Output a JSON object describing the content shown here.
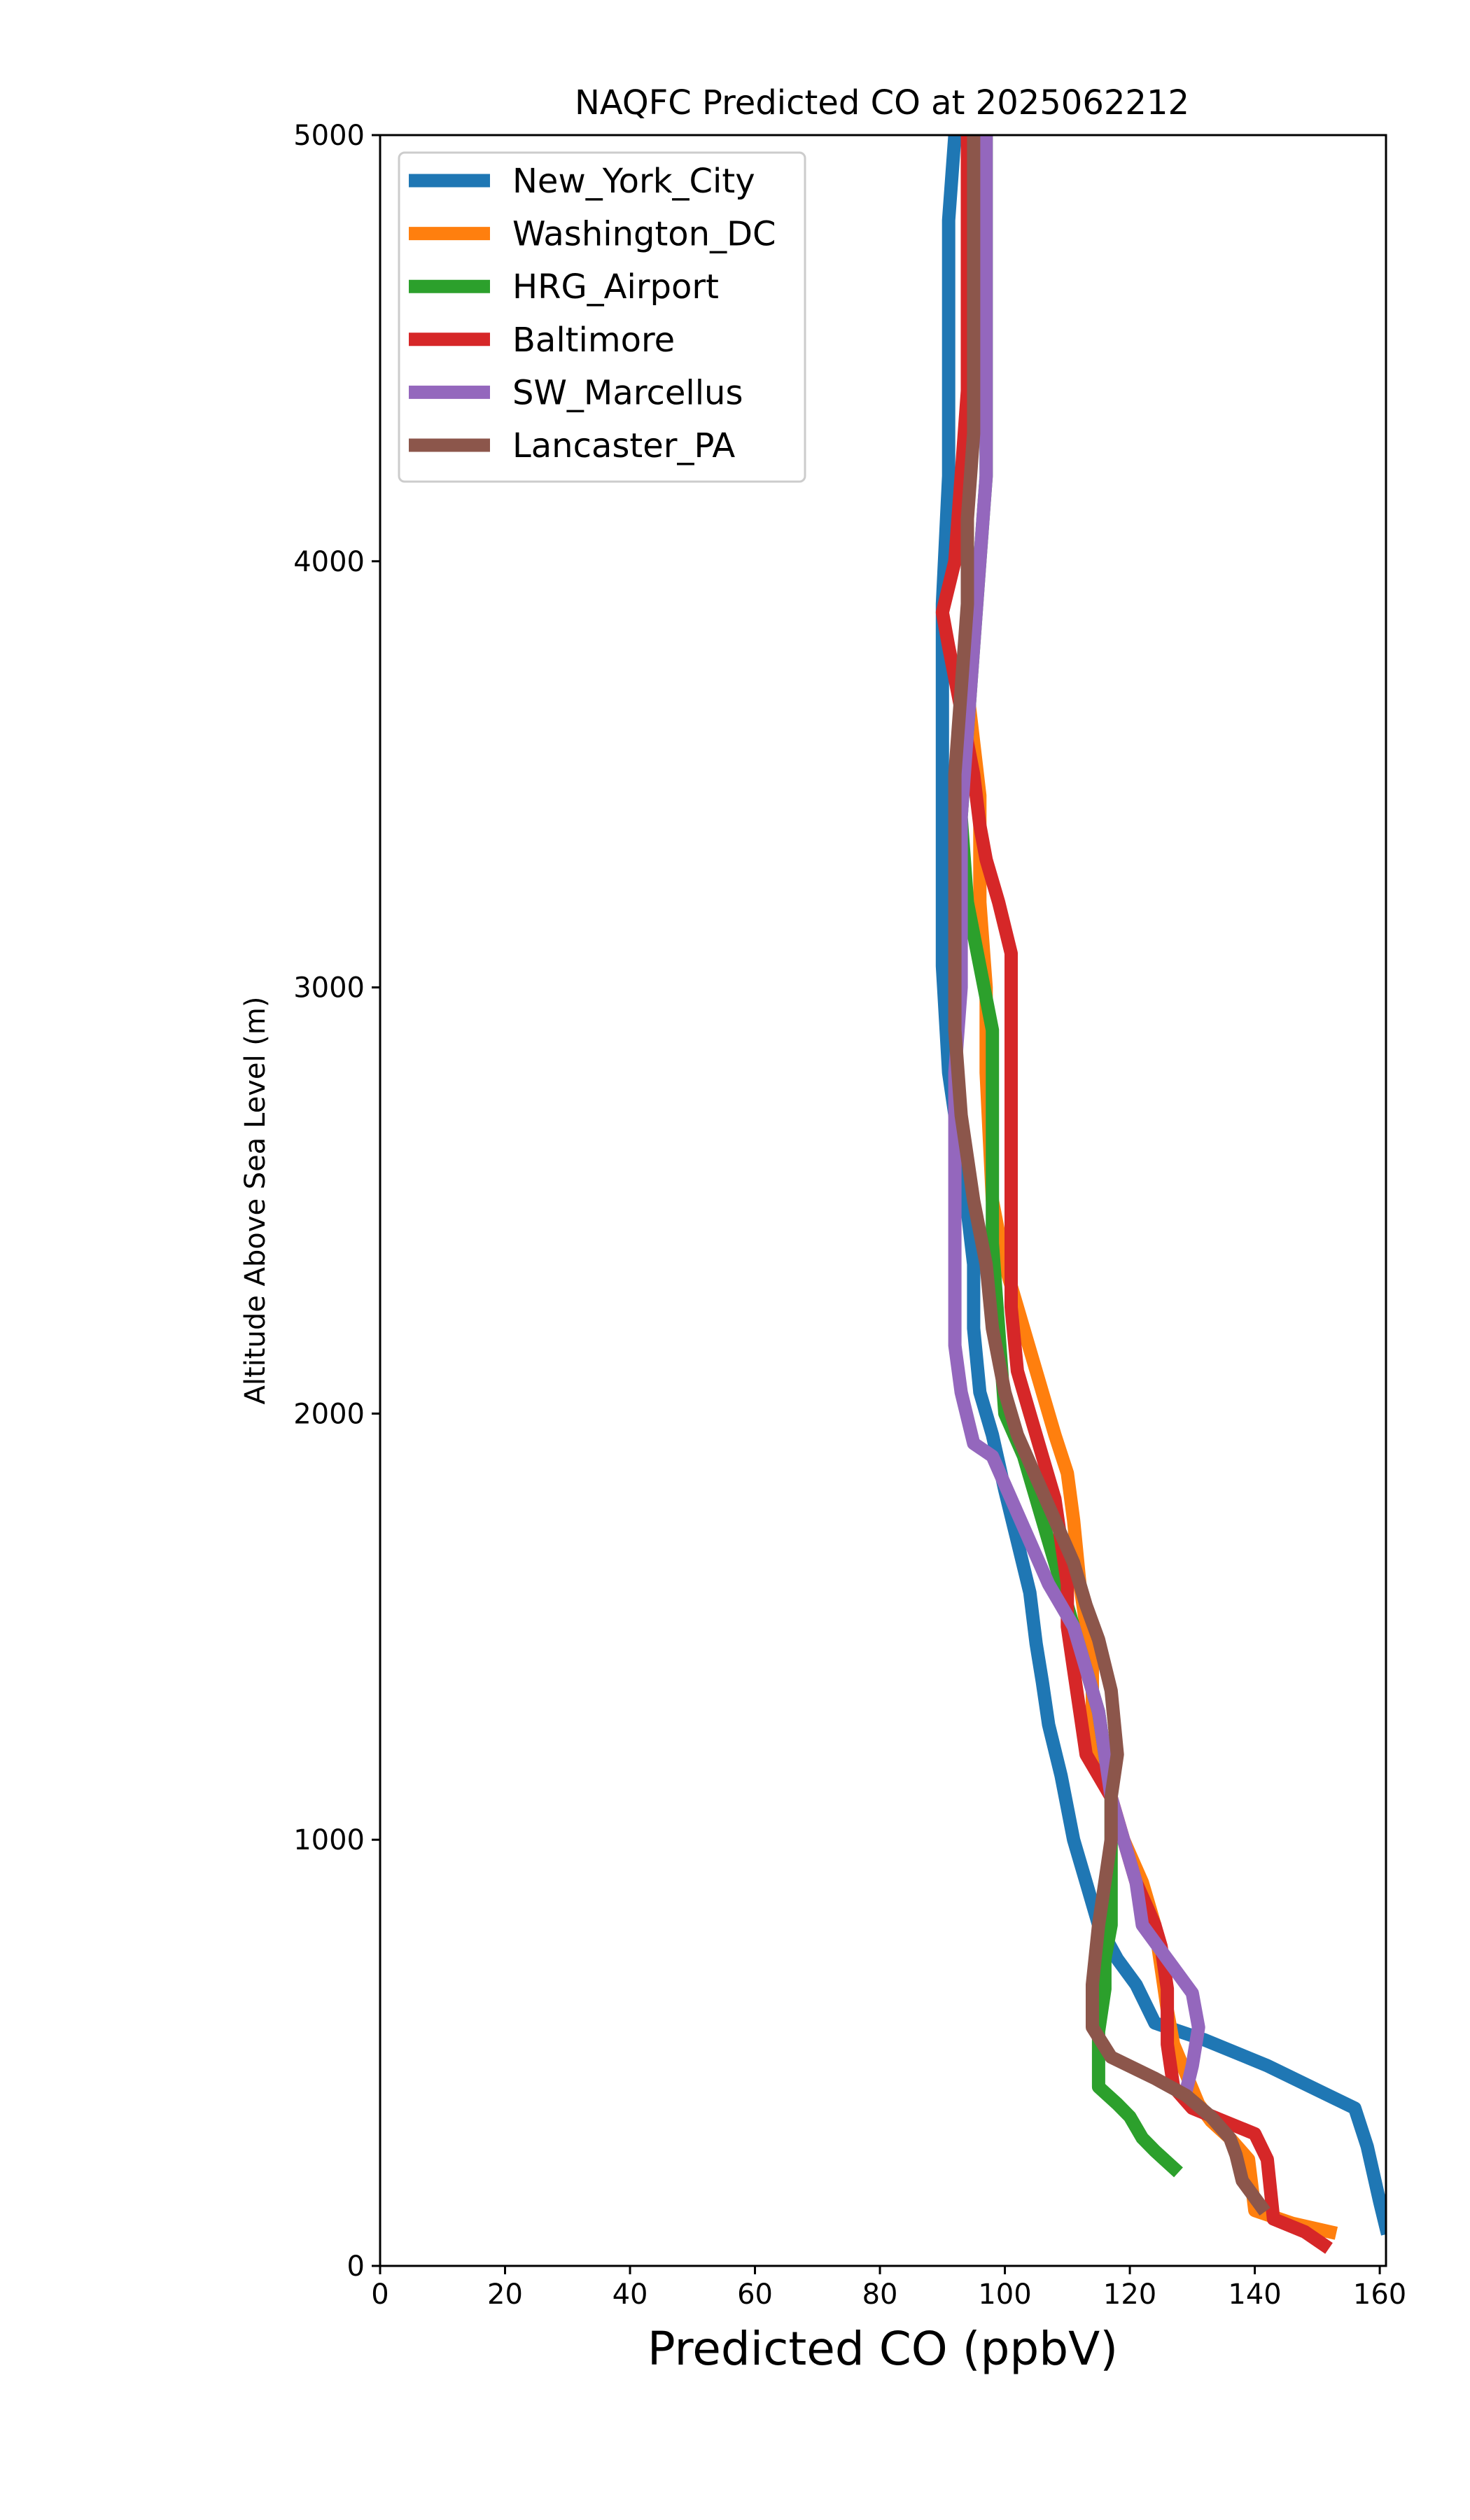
{
  "chart_data": {
    "type": "line",
    "title": "NAQFC Predicted CO at 2025062212",
    "xlabel": "Predicted CO (ppbV)",
    "ylabel": "Altitude Above Sea Level (m)",
    "xlim": [
      0,
      161
    ],
    "ylim": [
      0,
      5000
    ],
    "xticks": [
      "0",
      "20",
      "40",
      "60",
      "80",
      "100",
      "120",
      "140",
      "160"
    ],
    "yticks": [
      "0",
      "1000",
      "2000",
      "3000",
      "4000",
      "5000"
    ],
    "grid": false,
    "legend_position": "upper-left",
    "series": [
      {
        "name": "New_York_City",
        "color": "#1f77b4",
        "points": [
          [
            161,
            90
          ],
          [
            160,
            150
          ],
          [
            158,
            280
          ],
          [
            156,
            370
          ],
          [
            142,
            470
          ],
          [
            132,
            530
          ],
          [
            124,
            570
          ],
          [
            121,
            660
          ],
          [
            118,
            720
          ],
          [
            115,
            800
          ],
          [
            113,
            900
          ],
          [
            111,
            1000
          ],
          [
            109,
            1150
          ],
          [
            107,
            1270
          ],
          [
            106,
            1370
          ],
          [
            105,
            1460
          ],
          [
            104,
            1580
          ],
          [
            102,
            1700
          ],
          [
            100,
            1820
          ],
          [
            98,
            1950
          ],
          [
            96,
            2050
          ],
          [
            95,
            2200
          ],
          [
            95,
            2350
          ],
          [
            93,
            2600
          ],
          [
            91,
            2800
          ],
          [
            90,
            3050
          ],
          [
            90,
            3300
          ],
          [
            90,
            3600
          ],
          [
            90,
            3900
          ],
          [
            91,
            4200
          ],
          [
            91,
            4500
          ],
          [
            91,
            4800
          ],
          [
            92,
            5000
          ]
        ]
      },
      {
        "name": "Washington_DC",
        "color": "#ff7f0e",
        "points": [
          [
            152,
            80
          ],
          [
            146,
            100
          ],
          [
            140,
            130
          ],
          [
            139,
            250
          ],
          [
            136,
            300
          ],
          [
            133,
            340
          ],
          [
            131,
            380
          ],
          [
            129,
            450
          ],
          [
            127,
            520
          ],
          [
            126,
            600
          ],
          [
            125,
            700
          ],
          [
            124,
            800
          ],
          [
            122,
            900
          ],
          [
            119,
            1000
          ],
          [
            117,
            1100
          ],
          [
            115,
            1200
          ],
          [
            114,
            1300
          ],
          [
            114,
            1400
          ],
          [
            113,
            1500
          ],
          [
            112,
            1600
          ],
          [
            111,
            1750
          ],
          [
            110,
            1860
          ],
          [
            108,
            1950
          ],
          [
            105,
            2100
          ],
          [
            103,
            2200
          ],
          [
            100,
            2350
          ],
          [
            98,
            2500
          ],
          [
            97,
            2800
          ],
          [
            97,
            3000
          ],
          [
            96,
            3200
          ],
          [
            96,
            3300
          ],
          [
            96,
            3450
          ],
          [
            94,
            3700
          ],
          [
            94,
            4000
          ],
          [
            94,
            4300
          ],
          [
            94,
            4600
          ],
          [
            94,
            5000
          ]
        ]
      },
      {
        "name": "HRG_Airport",
        "color": "#2ca02c",
        "points": [
          [
            127,
            230
          ],
          [
            124,
            270
          ],
          [
            122,
            300
          ],
          [
            120,
            350
          ],
          [
            118,
            380
          ],
          [
            115,
            420
          ],
          [
            115,
            480
          ],
          [
            115,
            550
          ],
          [
            116,
            650
          ],
          [
            116,
            720
          ],
          [
            117,
            800
          ],
          [
            117,
            900
          ],
          [
            117,
            1000
          ],
          [
            117,
            1100
          ],
          [
            116,
            1200
          ],
          [
            115,
            1300
          ],
          [
            113,
            1400
          ],
          [
            111,
            1500
          ],
          [
            109,
            1600
          ],
          [
            107,
            1700
          ],
          [
            105,
            1800
          ],
          [
            103,
            1900
          ],
          [
            100,
            2000
          ],
          [
            99,
            2200
          ],
          [
            98,
            2400
          ],
          [
            98,
            2600
          ],
          [
            98,
            2900
          ],
          [
            96,
            3050
          ],
          [
            94,
            3200
          ],
          [
            93,
            3400
          ],
          [
            94,
            3600
          ],
          [
            95,
            3800
          ],
          [
            96,
            4000
          ],
          [
            97,
            4200
          ],
          [
            97,
            4500
          ],
          [
            97,
            4800
          ],
          [
            97,
            5000
          ]
        ]
      },
      {
        "name": "Baltimore",
        "color": "#d62728",
        "points": [
          [
            151,
            50
          ],
          [
            148,
            80
          ],
          [
            143,
            110
          ],
          [
            142,
            250
          ],
          [
            140,
            310
          ],
          [
            135,
            340
          ],
          [
            130,
            370
          ],
          [
            127,
            420
          ],
          [
            126,
            520
          ],
          [
            126,
            650
          ],
          [
            125,
            750
          ],
          [
            124,
            800
          ],
          [
            121,
            900
          ],
          [
            119,
            1000
          ],
          [
            117,
            1100
          ],
          [
            113,
            1200
          ],
          [
            112,
            1300
          ],
          [
            111,
            1400
          ],
          [
            110,
            1500
          ],
          [
            110,
            1600
          ],
          [
            109,
            1700
          ],
          [
            108,
            1800
          ],
          [
            106,
            1900
          ],
          [
            104,
            2000
          ],
          [
            102,
            2100
          ],
          [
            101,
            2250
          ],
          [
            101,
            2400
          ],
          [
            101,
            2600
          ],
          [
            101,
            2800
          ],
          [
            101,
            3080
          ],
          [
            99,
            3200
          ],
          [
            97,
            3300
          ],
          [
            96,
            3380
          ],
          [
            95,
            3500
          ],
          [
            93,
            3650
          ],
          [
            91,
            3800
          ],
          [
            90,
            3880
          ],
          [
            92,
            4000
          ],
          [
            93,
            4200
          ],
          [
            94,
            4400
          ],
          [
            94,
            4700
          ],
          [
            94,
            5000
          ]
        ]
      },
      {
        "name": "SW_Marcellus",
        "color": "#9467bd",
        "points": [
          [
            129,
            410
          ],
          [
            130,
            470
          ],
          [
            131,
            560
          ],
          [
            130,
            640
          ],
          [
            126,
            720
          ],
          [
            122,
            800
          ],
          [
            121,
            900
          ],
          [
            119,
            1000
          ],
          [
            117,
            1100
          ],
          [
            116,
            1200
          ],
          [
            115,
            1300
          ],
          [
            113,
            1400
          ],
          [
            111,
            1500
          ],
          [
            107,
            1600
          ],
          [
            104,
            1700
          ],
          [
            101,
            1800
          ],
          [
            98,
            1900
          ],
          [
            95,
            1930
          ],
          [
            93,
            2050
          ],
          [
            92,
            2160
          ],
          [
            92,
            2400
          ],
          [
            92,
            2600
          ],
          [
            92,
            2800
          ],
          [
            93,
            3000
          ],
          [
            93,
            3200
          ],
          [
            93,
            3400
          ],
          [
            94,
            3600
          ],
          [
            95,
            3800
          ],
          [
            96,
            4000
          ],
          [
            97,
            4200
          ],
          [
            97,
            4500
          ],
          [
            97,
            4800
          ],
          [
            97,
            5000
          ]
        ]
      },
      {
        "name": "Lancaster_PA",
        "color": "#8c564b",
        "points": [
          [
            141,
            140
          ],
          [
            138,
            200
          ],
          [
            137,
            260
          ],
          [
            136,
            300
          ],
          [
            133,
            350
          ],
          [
            129,
            400
          ],
          [
            124,
            440
          ],
          [
            117,
            490
          ],
          [
            114,
            560
          ],
          [
            114,
            660
          ],
          [
            115,
            800
          ],
          [
            116,
            900
          ],
          [
            117,
            1000
          ],
          [
            117,
            1100
          ],
          [
            118,
            1200
          ],
          [
            117,
            1350
          ],
          [
            115,
            1470
          ],
          [
            113,
            1550
          ],
          [
            111,
            1650
          ],
          [
            108,
            1750
          ],
          [
            105,
            1850
          ],
          [
            102,
            1950
          ],
          [
            100,
            2050
          ],
          [
            98,
            2200
          ],
          [
            97,
            2350
          ],
          [
            95,
            2500
          ],
          [
            93,
            2700
          ],
          [
            92,
            2900
          ],
          [
            92,
            3100
          ],
          [
            92,
            3300
          ],
          [
            92,
            3500
          ],
          [
            93,
            3700
          ],
          [
            94,
            3900
          ],
          [
            94,
            4100
          ],
          [
            95,
            4300
          ],
          [
            95,
            4600
          ],
          [
            95,
            5000
          ]
        ]
      }
    ]
  }
}
